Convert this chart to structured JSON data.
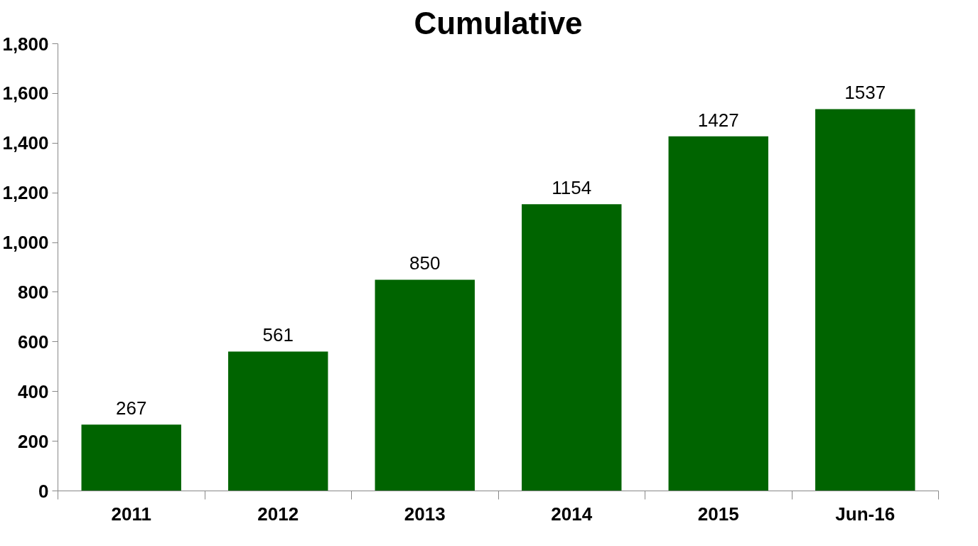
{
  "chart_data": {
    "type": "bar",
    "title": "Cumulative",
    "categories": [
      "2011",
      "2012",
      "2013",
      "2014",
      "2015",
      "Jun-16"
    ],
    "values": [
      267,
      561,
      850,
      1154,
      1427,
      1537
    ],
    "color": "#006400",
    "ylim": [
      0,
      1800
    ],
    "yticks": [
      0,
      200,
      400,
      600,
      800,
      {
        "value": 1000,
        "label": "1,000"
      },
      {
        "value": 1200,
        "label": "1,200"
      },
      {
        "value": 1400,
        "label": "1,400"
      },
      {
        "value": 1600,
        "label": "1,600"
      },
      {
        "value": 1800,
        "label": "1,800"
      }
    ],
    "grid": false,
    "data_labels": true
  }
}
